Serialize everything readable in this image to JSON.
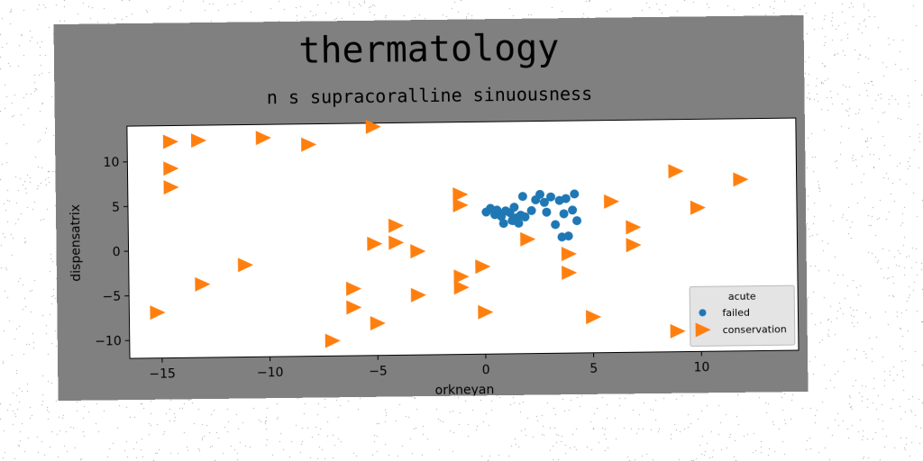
{
  "chart_data": {
    "type": "scatter",
    "title": "thermatology",
    "subtitle": "n s supracoralline sinuousness",
    "xlabel": "orkneyan",
    "ylabel": "dispensatrix",
    "xlim": [
      -16.5,
      14.5
    ],
    "ylim": [
      -12,
      14
    ],
    "xticks": [
      -15,
      -10,
      -5,
      0,
      5,
      10
    ],
    "yticks": [
      -10,
      -5,
      0,
      5,
      10
    ],
    "grid": false,
    "legend": {
      "title": "acute",
      "placement": "lower-right"
    },
    "series": [
      {
        "name": "failed",
        "marker": "circle",
        "color": "#1f77b4",
        "points": [
          [
            0.1,
            3.9
          ],
          [
            0.3,
            4.3
          ],
          [
            0.5,
            3.6
          ],
          [
            0.6,
            4.1
          ],
          [
            0.8,
            3.4
          ],
          [
            0.9,
            2.6
          ],
          [
            1.0,
            4.0
          ],
          [
            1.2,
            3.8
          ],
          [
            1.3,
            2.9
          ],
          [
            1.4,
            4.4
          ],
          [
            1.5,
            3.2
          ],
          [
            1.6,
            2.6
          ],
          [
            1.7,
            3.5
          ],
          [
            1.8,
            5.6
          ],
          [
            1.9,
            3.3
          ],
          [
            2.4,
            5.2
          ],
          [
            2.6,
            5.8
          ],
          [
            2.8,
            4.9
          ],
          [
            2.9,
            3.8
          ],
          [
            3.1,
            5.5
          ],
          [
            3.3,
            2.4
          ],
          [
            3.5,
            5.1
          ],
          [
            3.6,
            1.0
          ],
          [
            3.7,
            3.6
          ],
          [
            3.9,
            1.1
          ],
          [
            4.1,
            4.0
          ],
          [
            4.2,
            5.8
          ],
          [
            4.3,
            2.8
          ],
          [
            3.8,
            5.3
          ],
          [
            2.2,
            4.0
          ]
        ]
      },
      {
        "name": "conservation",
        "marker": "triangle-right",
        "color": "#ff7f0e",
        "points": [
          [
            -14.5,
            12.2
          ],
          [
            -13.2,
            12.3
          ],
          [
            -10.2,
            12.5
          ],
          [
            -8.1,
            11.7
          ],
          [
            -5.1,
            13.6
          ],
          [
            -14.5,
            9.2
          ],
          [
            -14.5,
            7.1
          ],
          [
            -15.2,
            -6.9
          ],
          [
            -13.1,
            -3.8
          ],
          [
            -11.1,
            -1.7
          ],
          [
            -6.1,
            -4.5
          ],
          [
            -6.1,
            -6.6
          ],
          [
            -5.0,
            -8.4
          ],
          [
            -7.1,
            -10.3
          ],
          [
            -5.1,
            0.5
          ],
          [
            -4.1,
            2.5
          ],
          [
            -4.1,
            0.6
          ],
          [
            -3.1,
            -0.4
          ],
          [
            -3.1,
            -5.3
          ],
          [
            -1.1,
            5.9
          ],
          [
            -1.1,
            4.7
          ],
          [
            -1.1,
            -3.3
          ],
          [
            -1.1,
            -4.5
          ],
          [
            -0.1,
            -2.2
          ],
          [
            0.0,
            -7.3
          ],
          [
            2.0,
            0.8
          ],
          [
            3.9,
            -0.9
          ],
          [
            3.9,
            -3.0
          ],
          [
            5.0,
            -8.0
          ],
          [
            5.9,
            4.9
          ],
          [
            6.9,
            2.0
          ],
          [
            6.9,
            0.0
          ],
          [
            8.9,
            8.2
          ],
          [
            8.9,
            -9.7
          ],
          [
            9.9,
            4.1
          ],
          [
            11.9,
            7.2
          ]
        ]
      }
    ]
  }
}
